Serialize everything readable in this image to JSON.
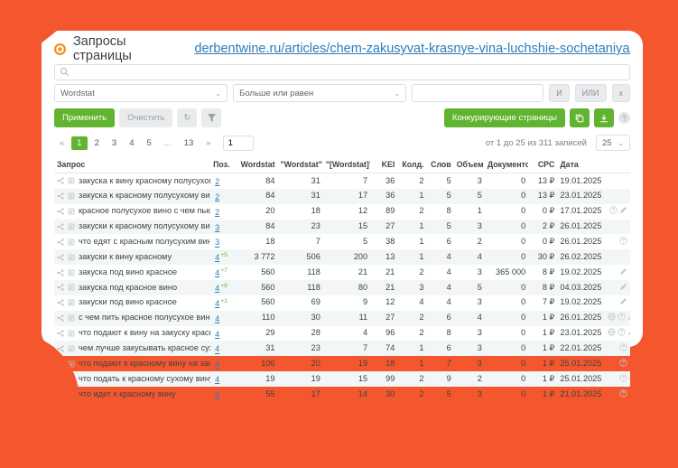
{
  "header": {
    "title": "Запросы страницы",
    "url": "derbentwine.ru/articles/chem-zakusyvat-krasnye-vina-luchshie-sochetaniya/"
  },
  "filters": {
    "search_value": "",
    "field_select": "Wordstat",
    "operator_select": "Больше или равен",
    "value_input": "",
    "and_label": "И",
    "or_label": "ИЛИ",
    "remove_label": "x"
  },
  "actions": {
    "apply": "Применить",
    "clear": "Очистить",
    "competing_pages": "Конкурирующие страницы"
  },
  "pagination": {
    "prev": "«",
    "next": "»",
    "pages": [
      "1",
      "2",
      "3",
      "4",
      "5",
      "...",
      "13"
    ],
    "active_page": "1",
    "goto_value": "1",
    "records_info": "от 1 до 25 из 311 записей",
    "page_size": "25"
  },
  "colors": {
    "accent_orange": "#F4572E",
    "brand_green": "#61B42F",
    "link_blue": "#2E7CB8"
  },
  "table": {
    "columns": [
      "Запрос",
      "Поз.",
      "Wordstat",
      "\"Wordstat\"",
      "\"[Wordstat]\"",
      "KEI",
      "Колд.",
      "Слов",
      "Объем",
      "Документов",
      "CPC",
      "Дата",
      ""
    ],
    "sorted_column": "\"Wordstat\"",
    "rows": [
      {
        "query": "закуска к вину красному полусухому",
        "pos": "2",
        "pos_delta": "",
        "wordstat": "84",
        "wordstat_q": "31",
        "wordstat_b": "7",
        "kei": "36",
        "kold": "2",
        "slov": "5",
        "obem": "3",
        "docs": "0",
        "cpc": "13 ₽",
        "date": "19.01.2025",
        "icons": []
      },
      {
        "query": "закуска к красному полусухому вину",
        "pos": "2",
        "pos_delta": "",
        "wordstat": "84",
        "wordstat_q": "31",
        "wordstat_b": "17",
        "kei": "36",
        "kold": "1",
        "slov": "5",
        "obem": "5",
        "docs": "0",
        "cpc": "13 ₽",
        "date": "23.01.2025",
        "icons": []
      },
      {
        "query": "красное полусухое вино с чем пьют и закусывают",
        "pos": "2",
        "pos_delta": "",
        "wordstat": "20",
        "wordstat_q": "18",
        "wordstat_b": "12",
        "kei": "89",
        "kold": "2",
        "slov": "8",
        "obem": "1",
        "docs": "0",
        "cpc": "0 ₽",
        "date": "17.01.2025",
        "icons": [
          "question-icon",
          "pencil-icon"
        ]
      },
      {
        "query": "закуски к красному полусухому вину",
        "pos": "3",
        "pos_delta": "",
        "wordstat": "84",
        "wordstat_q": "23",
        "wordstat_b": "15",
        "kei": "27",
        "kold": "1",
        "slov": "5",
        "obem": "3",
        "docs": "0",
        "cpc": "2 ₽",
        "date": "26.01.2025",
        "icons": []
      },
      {
        "query": "что едят с красным полусухим вином",
        "pos": "3",
        "pos_delta": "",
        "wordstat": "18",
        "wordstat_q": "7",
        "wordstat_b": "5",
        "kei": "38",
        "kold": "1",
        "slov": "6",
        "obem": "2",
        "docs": "0",
        "cpc": "0 ₽",
        "date": "26.01.2025",
        "icons": [
          "question-icon"
        ]
      },
      {
        "query": "закуски к вину красному",
        "pos": "4",
        "pos_delta": "+5",
        "wordstat": "3 772",
        "wordstat_q": "506",
        "wordstat_b": "200",
        "kei": "13",
        "kold": "1",
        "slov": "4",
        "obem": "4",
        "docs": "0",
        "cpc": "30 ₽",
        "date": "26.02.2025",
        "icons": []
      },
      {
        "query": "закуска под вино красное",
        "pos": "4",
        "pos_delta": "+7",
        "wordstat": "560",
        "wordstat_q": "118",
        "wordstat_b": "21",
        "kei": "21",
        "kold": "2",
        "slov": "4",
        "obem": "3",
        "docs": "365 000",
        "cpc": "8 ₽",
        "date": "19.02.2025",
        "icons": [
          "pencil-icon"
        ]
      },
      {
        "query": "закуска под красное вино",
        "pos": "4",
        "pos_delta": "+8",
        "wordstat": "560",
        "wordstat_q": "118",
        "wordstat_b": "80",
        "kei": "21",
        "kold": "3",
        "slov": "4",
        "obem": "5",
        "docs": "0",
        "cpc": "8 ₽",
        "date": "04.03.2025",
        "icons": [
          "pencil-icon"
        ]
      },
      {
        "query": "закуски под вино красное",
        "pos": "4",
        "pos_delta": "+1",
        "wordstat": "560",
        "wordstat_q": "69",
        "wordstat_b": "9",
        "kei": "12",
        "kold": "4",
        "slov": "4",
        "obem": "3",
        "docs": "0",
        "cpc": "7 ₽",
        "date": "19.02.2025",
        "icons": [
          "pencil-icon"
        ]
      },
      {
        "query": "с чем пить красное полусухое вино",
        "pos": "4",
        "pos_delta": "",
        "wordstat": "110",
        "wordstat_q": "30",
        "wordstat_b": "11",
        "kei": "27",
        "kold": "2",
        "slov": "6",
        "obem": "4",
        "docs": "0",
        "cpc": "1 ₽",
        "date": "26.01.2025",
        "icons": [
          "globe-icon",
          "question-icon",
          "pencil-icon"
        ]
      },
      {
        "query": "что подают к вину на закуску красному полусладкому",
        "pos": "4",
        "pos_delta": "",
        "wordstat": "29",
        "wordstat_q": "28",
        "wordstat_b": "4",
        "kei": "96",
        "kold": "2",
        "slov": "8",
        "obem": "3",
        "docs": "0",
        "cpc": "1 ₽",
        "date": "23.01.2025",
        "icons": [
          "globe-icon",
          "question-icon",
          "pencil-icon"
        ]
      },
      {
        "query": "чем лучше закусывать красное сухое вино",
        "pos": "4",
        "pos_delta": "",
        "wordstat": "31",
        "wordstat_q": "23",
        "wordstat_b": "7",
        "kei": "74",
        "kold": "1",
        "slov": "6",
        "obem": "3",
        "docs": "0",
        "cpc": "1 ₽",
        "date": "22.01.2025",
        "icons": [
          "question-icon"
        ]
      },
      {
        "query": "что подают к красному вину на закуску",
        "pos": "4",
        "pos_delta": "",
        "wordstat": "106",
        "wordstat_q": "20",
        "wordstat_b": "19",
        "kei": "18",
        "kold": "1",
        "slov": "7",
        "obem": "3",
        "docs": "0",
        "cpc": "1 ₽",
        "date": "25.01.2025",
        "icons": [
          "question-icon"
        ]
      },
      {
        "query": "что подать к красному сухому вину в качестве закуски",
        "pos": "4",
        "pos_delta": "",
        "wordstat": "19",
        "wordstat_q": "19",
        "wordstat_b": "15",
        "kei": "99",
        "kold": "2",
        "slov": "9",
        "obem": "2",
        "docs": "0",
        "cpc": "1 ₽",
        "date": "25.01.2025",
        "icons": [
          "question-icon"
        ]
      },
      {
        "query": "что идет к красному вину",
        "pos": "4",
        "pos_delta": "",
        "wordstat": "55",
        "wordstat_q": "17",
        "wordstat_b": "14",
        "kei": "30",
        "kold": "2",
        "slov": "5",
        "obem": "3",
        "docs": "0",
        "cpc": "1 ₽",
        "date": "21.01.2025",
        "icons": [
          "question-icon"
        ]
      }
    ]
  }
}
